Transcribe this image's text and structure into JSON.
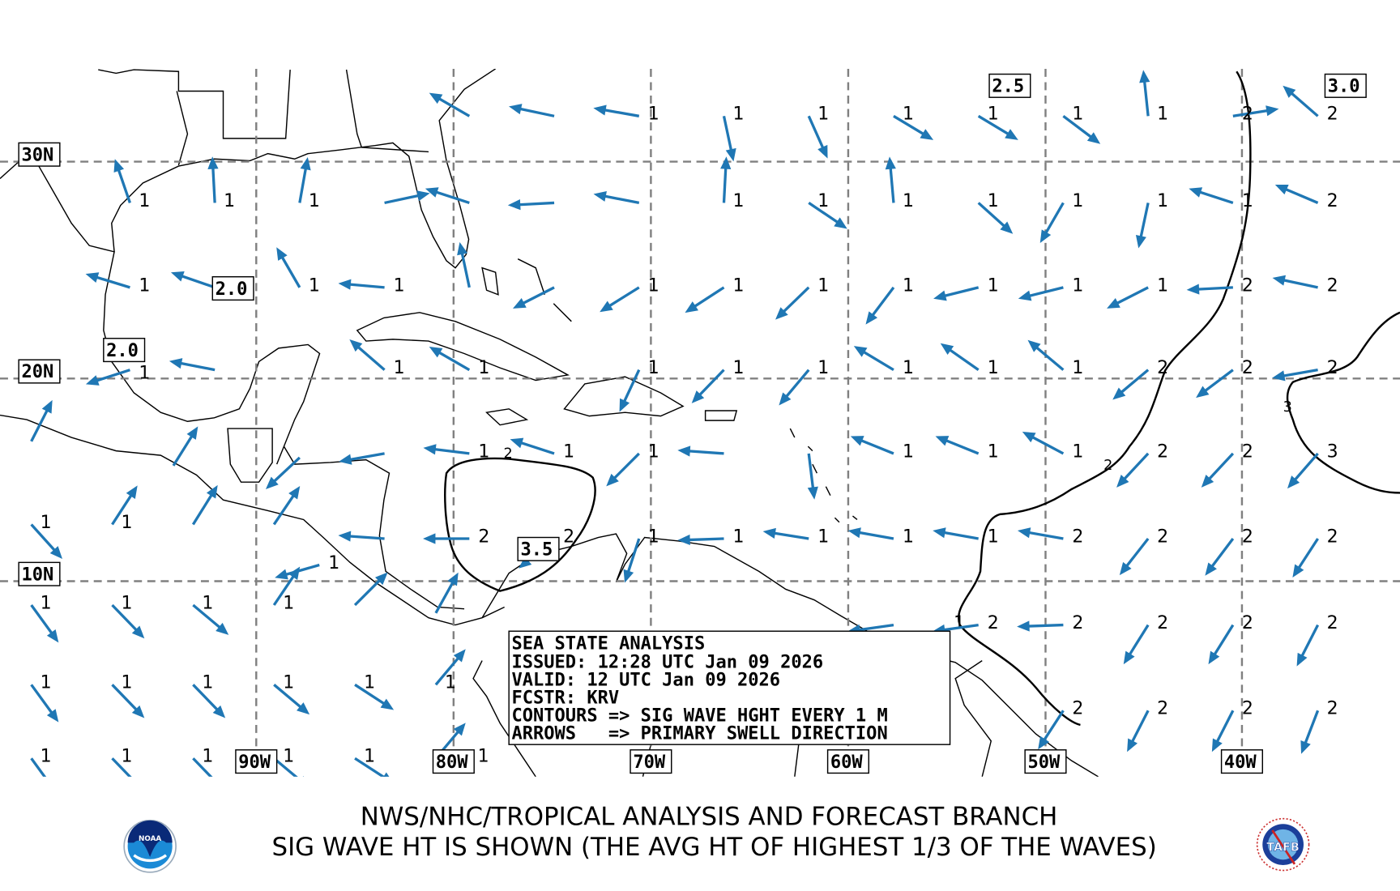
{
  "colors": {
    "arrow": "#1f77b4",
    "grid": "#808080",
    "contour": "#000000"
  },
  "lat_labels": [
    "30N",
    "20N",
    "10N"
  ],
  "lon_labels": [
    "90W",
    "80W",
    "70W",
    "60W",
    "50W",
    "40W"
  ],
  "value_boxes": [
    "2.5",
    "3.0",
    "2.0",
    "2.0",
    "3.5"
  ],
  "contour_labels": [
    "2",
    "2",
    "3"
  ],
  "info": {
    "line1": "SEA STATE ANALYSIS",
    "line2": "ISSUED: 12:28 UTC Jan 09 2026",
    "line3": "VALID: 12 UTC Jan 09 2026",
    "line4": "FCSTR: KRV",
    "line5": "CONTOURS => SIG WAVE HGHT EVERY 1 M",
    "line6": "ARROWS   => PRIMARY SWELL DIRECTION"
  },
  "footer": {
    "line1": "NWS/NHC/TROPICAL ANALYSIS AND FORECAST BRANCH",
    "line2": "SIG WAVE HT IS SHOWN (THE AVG HT OF HIGHEST 1/3 OF THE WAVES)"
  },
  "logos": {
    "left": "NOAA",
    "right": "TAFB"
  },
  "arrows": [
    {
      "lat": 32.1,
      "lon": -79.2,
      "dir": 300,
      "label": ""
    },
    {
      "lat": 32.1,
      "lon": -74.9,
      "dir": 282,
      "label": ""
    },
    {
      "lat": 32.1,
      "lon": -70.6,
      "dir": 280,
      "label": "1"
    },
    {
      "lat": 32.1,
      "lon": -66.3,
      "dir": 168,
      "label": "1"
    },
    {
      "lat": 32.1,
      "lon": -62.0,
      "dir": 156,
      "label": "1"
    },
    {
      "lat": 32.1,
      "lon": -57.7,
      "dir": 121,
      "label": "1"
    },
    {
      "lat": 32.1,
      "lon": -53.4,
      "dir": 121,
      "label": "1"
    },
    {
      "lat": 32.1,
      "lon": -49.1,
      "dir": 127,
      "label": "1"
    },
    {
      "lat": 32.1,
      "lon": -44.8,
      "dir": 354,
      "label": "1"
    },
    {
      "lat": 32.1,
      "lon": -40.5,
      "dir": 81,
      "label": "2"
    },
    {
      "lat": 32.1,
      "lon": -36.2,
      "dir": 311,
      "label": "2"
    },
    {
      "lat": 28.1,
      "lon": -96.4,
      "dir": 341,
      "label": "1"
    },
    {
      "lat": 28.1,
      "lon": -92.1,
      "dir": 357,
      "label": "1"
    },
    {
      "lat": 28.1,
      "lon": -87.8,
      "dir": 10,
      "label": "1"
    },
    {
      "lat": 28.1,
      "lon": -83.5,
      "dir": 78,
      "label": ""
    },
    {
      "lat": 28.1,
      "lon": -79.2,
      "dir": 288,
      "label": ""
    },
    {
      "lat": 28.1,
      "lon": -74.9,
      "dir": 267,
      "label": ""
    },
    {
      "lat": 28.1,
      "lon": -70.6,
      "dir": 281,
      "label": ""
    },
    {
      "lat": 28.1,
      "lon": -66.3,
      "dir": 3,
      "label": "1"
    },
    {
      "lat": 28.1,
      "lon": -62.0,
      "dir": 124,
      "label": "1"
    },
    {
      "lat": 28.1,
      "lon": -57.7,
      "dir": 355,
      "label": "1"
    },
    {
      "lat": 28.1,
      "lon": -53.4,
      "dir": 132,
      "label": "1"
    },
    {
      "lat": 28.1,
      "lon": -49.1,
      "dir": 210,
      "label": "1"
    },
    {
      "lat": 28.1,
      "lon": -44.8,
      "dir": 192,
      "label": "1"
    },
    {
      "lat": 28.1,
      "lon": -40.5,
      "dir": 288,
      "label": "1"
    },
    {
      "lat": 28.1,
      "lon": -36.2,
      "dir": 293,
      "label": "2"
    },
    {
      "lat": 24.2,
      "lon": -96.4,
      "dir": 287,
      "label": "1"
    },
    {
      "lat": 24.2,
      "lon": -92.1,
      "dir": 289,
      "label": ""
    },
    {
      "lat": 24.2,
      "lon": -87.8,
      "dir": 330,
      "label": "1"
    },
    {
      "lat": 24.2,
      "lon": -83.5,
      "dir": 275,
      "label": "1"
    },
    {
      "lat": 24.2,
      "lon": -79.2,
      "dir": 348,
      "label": ""
    },
    {
      "lat": 24.2,
      "lon": -74.9,
      "dir": 243,
      "label": ""
    },
    {
      "lat": 24.2,
      "lon": -70.6,
      "dir": 238,
      "label": "1"
    },
    {
      "lat": 24.2,
      "lon": -66.3,
      "dir": 237,
      "label": "1"
    },
    {
      "lat": 24.2,
      "lon": -62.0,
      "dir": 226,
      "label": "1"
    },
    {
      "lat": 24.2,
      "lon": -57.7,
      "dir": 217,
      "label": "1"
    },
    {
      "lat": 24.2,
      "lon": -53.4,
      "dir": 256,
      "label": "1"
    },
    {
      "lat": 24.2,
      "lon": -49.1,
      "dir": 256,
      "label": "1"
    },
    {
      "lat": 24.2,
      "lon": -44.8,
      "dir": 243,
      "label": "1"
    },
    {
      "lat": 24.2,
      "lon": -40.5,
      "dir": 267,
      "label": "2"
    },
    {
      "lat": 24.2,
      "lon": -36.2,
      "dir": 282,
      "label": "2"
    },
    {
      "lat": 20.4,
      "lon": -96.4,
      "dir": 252,
      "label": "1"
    },
    {
      "lat": 20.4,
      "lon": -92.1,
      "dir": 281,
      "label": ""
    },
    {
      "lat": 20.4,
      "lon": -83.5,
      "dir": 311,
      "label": "1"
    },
    {
      "lat": 20.4,
      "lon": -79.2,
      "dir": 300,
      "label": "1"
    },
    {
      "lat": 20.4,
      "lon": -70.6,
      "dir": 205,
      "label": "1"
    },
    {
      "lat": 20.4,
      "lon": -66.3,
      "dir": 224,
      "label": "1"
    },
    {
      "lat": 20.4,
      "lon": -62.0,
      "dir": 220,
      "label": "1"
    },
    {
      "lat": 20.4,
      "lon": -57.7,
      "dir": 301,
      "label": "1"
    },
    {
      "lat": 20.4,
      "lon": -53.4,
      "dir": 305,
      "label": "1"
    },
    {
      "lat": 20.4,
      "lon": -49.1,
      "dir": 310,
      "label": "1"
    },
    {
      "lat": 20.4,
      "lon": -44.8,
      "dir": 230,
      "label": "2"
    },
    {
      "lat": 20.4,
      "lon": -40.5,
      "dir": 233,
      "label": "2"
    },
    {
      "lat": 20.4,
      "lon": -36.2,
      "dir": 260,
      "label": "2"
    },
    {
      "lat": 16.9,
      "lon": -101.4,
      "dir": 27,
      "label": ""
    },
    {
      "lat": 15.7,
      "lon": -94.2,
      "dir": 32,
      "label": ""
    },
    {
      "lat": 16.1,
      "lon": -87.8,
      "dir": 227,
      "label": ""
    },
    {
      "lat": 16.3,
      "lon": -83.5,
      "dir": 260,
      "label": ""
    },
    {
      "lat": 16.3,
      "lon": -79.2,
      "dir": 277,
      "label": "1"
    },
    {
      "lat": 16.3,
      "lon": -74.9,
      "dir": 288,
      "label": "1"
    },
    {
      "lat": 16.3,
      "lon": -70.6,
      "dir": 225,
      "label": "1"
    },
    {
      "lat": 16.3,
      "lon": -66.3,
      "dir": 274,
      "label": ""
    },
    {
      "lat": 16.3,
      "lon": -62.0,
      "dir": 173,
      "label": ""
    },
    {
      "lat": 16.3,
      "lon": -57.7,
      "dir": 292,
      "label": "1"
    },
    {
      "lat": 16.3,
      "lon": -53.4,
      "dir": 292,
      "label": "1"
    },
    {
      "lat": 16.3,
      "lon": -49.1,
      "dir": 298,
      "label": "1"
    },
    {
      "lat": 16.3,
      "lon": -44.8,
      "dir": 223,
      "label": "2"
    },
    {
      "lat": 16.3,
      "lon": -40.5,
      "dir": 223,
      "label": "2"
    },
    {
      "lat": 16.3,
      "lon": -36.2,
      "dir": 221,
      "label": "3"
    },
    {
      "lat": 12.8,
      "lon": -101.4,
      "dir": 138,
      "label": "1"
    },
    {
      "lat": 12.8,
      "lon": -97.3,
      "dir": 33,
      "label": "1"
    },
    {
      "lat": 12.8,
      "lon": -93.2,
      "dir": 32,
      "label": ""
    },
    {
      "lat": 12.8,
      "lon": -89.1,
      "dir": 34,
      "label": ""
    },
    {
      "lat": 10.8,
      "lon": -86.8,
      "dir": 254,
      "label": "1"
    },
    {
      "lat": 12.1,
      "lon": -83.5,
      "dir": 274,
      "label": ""
    },
    {
      "lat": 12.1,
      "lon": -79.2,
      "dir": 270,
      "label": "2"
    },
    {
      "lat": 12.1,
      "lon": -74.9,
      "dir": 230,
      "label": "2"
    },
    {
      "lat": 12.1,
      "lon": -70.6,
      "dir": 198,
      "label": "1"
    },
    {
      "lat": 12.1,
      "lon": -66.3,
      "dir": 268,
      "label": "1"
    },
    {
      "lat": 12.1,
      "lon": -62.0,
      "dir": 279,
      "label": "1"
    },
    {
      "lat": 12.1,
      "lon": -57.7,
      "dir": 280,
      "label": "1"
    },
    {
      "lat": 12.1,
      "lon": -53.4,
      "dir": 280,
      "label": "1"
    },
    {
      "lat": 12.1,
      "lon": -49.1,
      "dir": 280,
      "label": "2"
    },
    {
      "lat": 12.1,
      "lon": -44.8,
      "dir": 218,
      "label": "2"
    },
    {
      "lat": 12.1,
      "lon": -40.5,
      "dir": 217,
      "label": "2"
    },
    {
      "lat": 12.1,
      "lon": -36.2,
      "dir": 213,
      "label": "2"
    },
    {
      "lat": 8.8,
      "lon": -101.4,
      "dir": 144,
      "label": "1"
    },
    {
      "lat": 8.8,
      "lon": -97.3,
      "dir": 136,
      "label": "1"
    },
    {
      "lat": 8.8,
      "lon": -93.2,
      "dir": 130,
      "label": "1"
    },
    {
      "lat": 8.8,
      "lon": -89.1,
      "dir": 34,
      "label": "1"
    },
    {
      "lat": 8.8,
      "lon": -85.0,
      "dir": 45,
      "label": ""
    },
    {
      "lat": 8.4,
      "lon": -80.9,
      "dir": 29,
      "label": ""
    },
    {
      "lat": 7.8,
      "lon": -57.7,
      "dir": 262,
      "label": "1"
    },
    {
      "lat": 7.8,
      "lon": -53.4,
      "dir": 262,
      "label": "2"
    },
    {
      "lat": 7.8,
      "lon": -49.1,
      "dir": 268,
      "label": "2"
    },
    {
      "lat": 7.8,
      "lon": -44.8,
      "dir": 212,
      "label": "2"
    },
    {
      "lat": 7.8,
      "lon": -40.5,
      "dir": 212,
      "label": "2"
    },
    {
      "lat": 7.8,
      "lon": -36.2,
      "dir": 207,
      "label": "2"
    },
    {
      "lat": 4.8,
      "lon": -101.4,
      "dir": 144,
      "label": "1"
    },
    {
      "lat": 4.8,
      "lon": -97.3,
      "dir": 136,
      "label": "1"
    },
    {
      "lat": 4.8,
      "lon": -93.2,
      "dir": 136,
      "label": "1"
    },
    {
      "lat": 4.8,
      "lon": -89.1,
      "dir": 130,
      "label": "1"
    },
    {
      "lat": 4.8,
      "lon": -85.0,
      "dir": 123,
      "label": "1"
    },
    {
      "lat": 4.8,
      "lon": -80.9,
      "dir": 40,
      "label": "1"
    },
    {
      "lat": 3.5,
      "lon": -49.1,
      "dir": 213,
      "label": "2"
    },
    {
      "lat": 3.5,
      "lon": -44.8,
      "dir": 207,
      "label": "2"
    },
    {
      "lat": 3.5,
      "lon": -40.5,
      "dir": 207,
      "label": "2"
    },
    {
      "lat": 3.5,
      "lon": -36.2,
      "dir": 201,
      "label": "2"
    },
    {
      "lat": 1.1,
      "lon": -101.4,
      "dir": 144,
      "label": "1"
    },
    {
      "lat": 1.1,
      "lon": -97.3,
      "dir": 136,
      "label": "1"
    },
    {
      "lat": 1.1,
      "lon": -93.2,
      "dir": 136,
      "label": "1"
    },
    {
      "lat": 1.1,
      "lon": -89.1,
      "dir": 130,
      "label": "1"
    },
    {
      "lat": 1.1,
      "lon": -85.0,
      "dir": 123,
      "label": "1"
    },
    {
      "lat": 1.1,
      "lon": -80.9,
      "dir": 40,
      "label": "1"
    }
  ]
}
